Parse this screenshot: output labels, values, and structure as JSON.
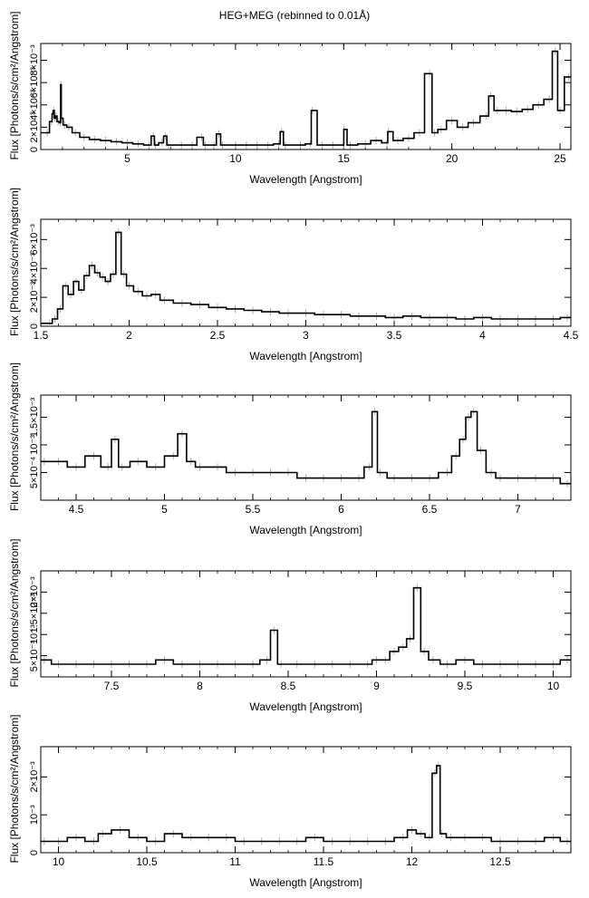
{
  "figure": {
    "title": "HEG+MEG (rebinned to 0.01Å)"
  },
  "colors": {
    "histogram": "#000000",
    "errorbar": "#b0b0b0"
  },
  "chart_data": [
    {
      "type": "line",
      "xlabel": "Wavelength [Angstrom]",
      "ylabel": "Flux [Photons/s/cm²/Angstrom]",
      "xlim": [
        1,
        25.5
      ],
      "ylim": [
        0,
        0.0095
      ],
      "xticks": [
        5,
        10,
        15,
        20,
        25
      ],
      "yticks": [
        0,
        0.002,
        0.004,
        0.006,
        0.008
      ],
      "ytick_labels": [
        "0",
        "2×10⁻³",
        "4×10⁻³",
        "6×10⁻³",
        "8×10⁻³"
      ],
      "series": [
        {
          "x": [
            1.3,
            1.5,
            1.55,
            1.6,
            1.65,
            1.7,
            1.8,
            1.9,
            1.93,
            1.96,
            2.1,
            2.3,
            2.6,
            3,
            3.5,
            4,
            4.5,
            5,
            5.5,
            6,
            6.2,
            6.3,
            6.6,
            6.75,
            6.9,
            7.5,
            8,
            8.43,
            8.6,
            9,
            9.23,
            9.4,
            10,
            10.5,
            11,
            11.5,
            12,
            12.13,
            12.3,
            13,
            13.45,
            13.55,
            14,
            14.5,
            15,
            15.01,
            15.3,
            16,
            16.5,
            17,
            17.07,
            17.5,
            18,
            18.5,
            18.97,
            19.2,
            19.5,
            20,
            20.5,
            21,
            21.6,
            21.8,
            22.1,
            22.5,
            23,
            23.5,
            24,
            24.5,
            24.78,
            25,
            25.4
          ],
          "y": [
            0.0015,
            0.0025,
            0.0032,
            0.0035,
            0.0028,
            0.003,
            0.0025,
            0.0024,
            0.0058,
            0.0028,
            0.0022,
            0.002,
            0.0015,
            0.0011,
            0.0009,
            0.0008,
            0.0007,
            0.0006,
            0.0005,
            0.0004,
            0.0012,
            0.0004,
            0.0006,
            0.0012,
            0.0004,
            0.0004,
            0.0004,
            0.0011,
            0.0004,
            0.0004,
            0.0014,
            0.0004,
            0.0004,
            0.0004,
            0.0004,
            0.0004,
            0.0005,
            0.0016,
            0.0004,
            0.0004,
            0.0005,
            0.0035,
            0.0004,
            0.0004,
            0.0004,
            0.0018,
            0.0004,
            0.0005,
            0.0008,
            0.0006,
            0.0016,
            0.0008,
            0.001,
            0.0015,
            0.0068,
            0.0015,
            0.0018,
            0.0026,
            0.002,
            0.0024,
            0.003,
            0.0048,
            0.0035,
            0.0035,
            0.0034,
            0.0036,
            0.004,
            0.0045,
            0.0088,
            0.0035,
            0.0065
          ]
        }
      ]
    },
    {
      "type": "line",
      "xlabel": "Wavelength [Angstrom]",
      "ylabel": "Flux [Photons/s/cm²/Angstrom]",
      "xlim": [
        1.5,
        4.5
      ],
      "ylim": [
        0,
        0.0074
      ],
      "xticks": [
        1.5,
        2,
        2.5,
        3,
        3.5,
        4,
        4.5
      ],
      "xtick_labels": [
        "1.5",
        "2",
        "2.5",
        "3",
        "3.5",
        "4",
        "4.5"
      ],
      "yticks": [
        0,
        0.002,
        0.004,
        0.006
      ],
      "ytick_labels": [
        "0",
        "2×10⁻³",
        "4×10⁻³",
        "6×10⁻³"
      ],
      "series": [
        {
          "x": [
            1.55,
            1.58,
            1.61,
            1.64,
            1.67,
            1.7,
            1.73,
            1.76,
            1.79,
            1.82,
            1.85,
            1.88,
            1.91,
            1.94,
            1.97,
            2.0,
            2.05,
            2.1,
            2.15,
            2.2,
            2.3,
            2.4,
            2.5,
            2.6,
            2.7,
            2.8,
            2.9,
            3.0,
            3.1,
            3.2,
            3.3,
            3.4,
            3.5,
            3.6,
            3.7,
            3.8,
            3.9,
            4.0,
            4.1,
            4.2,
            4.3,
            4.4,
            4.48
          ],
          "y": [
            0.0002,
            0.0005,
            0.0012,
            0.0028,
            0.0022,
            0.0031,
            0.0025,
            0.0035,
            0.0042,
            0.0037,
            0.0034,
            0.0031,
            0.0036,
            0.0065,
            0.0036,
            0.0028,
            0.0024,
            0.0021,
            0.0022,
            0.0018,
            0.0016,
            0.0015,
            0.0013,
            0.0012,
            0.0011,
            0.001,
            0.0009,
            0.0009,
            0.0008,
            0.0008,
            0.0007,
            0.0007,
            0.0006,
            0.0007,
            0.0006,
            0.0006,
            0.0005,
            0.0006,
            0.0005,
            0.0005,
            0.0005,
            0.0005,
            0.0006
          ]
        }
      ]
    },
    {
      "type": "line",
      "xlabel": "Wavelength [Angstrom]",
      "ylabel": "Flux [Photons/s/cm²/Angstrom]",
      "xlim": [
        4.3,
        7.3
      ],
      "ylim": [
        0,
        0.0019
      ],
      "xticks": [
        4.5,
        5,
        5.5,
        6,
        6.5,
        7
      ],
      "xtick_labels": [
        "4.5",
        "5",
        "5.5",
        "6",
        "6.5",
        "7"
      ],
      "yticks": [
        0.0005,
        0.001,
        0.0015
      ],
      "ytick_labels": [
        "5×10⁻⁴",
        "10⁻³",
        "1.5×10⁻³"
      ],
      "series": [
        {
          "x": [
            4.32,
            4.4,
            4.5,
            4.6,
            4.68,
            4.72,
            4.76,
            4.85,
            4.95,
            5.05,
            5.1,
            5.15,
            5.2,
            5.3,
            5.4,
            5.5,
            5.6,
            5.7,
            5.8,
            5.9,
            6.0,
            6.1,
            6.16,
            6.19,
            6.22,
            6.3,
            6.4,
            6.5,
            6.6,
            6.65,
            6.69,
            6.72,
            6.75,
            6.79,
            6.85,
            6.9,
            7.0,
            7.1,
            7.2,
            7.28
          ],
          "y": [
            0.0007,
            0.0007,
            0.0006,
            0.0008,
            0.0006,
            0.0011,
            0.0006,
            0.0007,
            0.0006,
            0.0008,
            0.0012,
            0.0007,
            0.0006,
            0.0006,
            0.0005,
            0.0005,
            0.0005,
            0.0005,
            0.0004,
            0.0004,
            0.0004,
            0.0004,
            0.0006,
            0.0016,
            0.0005,
            0.0004,
            0.0004,
            0.0004,
            0.0005,
            0.0008,
            0.0011,
            0.0015,
            0.0016,
            0.0009,
            0.0005,
            0.0004,
            0.0004,
            0.0004,
            0.0004,
            0.0003
          ]
        }
      ]
    },
    {
      "type": "line",
      "xlabel": "Wavelength [Angstrom]",
      "ylabel": "Flux [Photons/s/cm²/Angstrom]",
      "xlim": [
        7.1,
        10.1
      ],
      "ylim": [
        0,
        0.0025
      ],
      "xticks": [
        7.5,
        8,
        8.5,
        9,
        9.5,
        10
      ],
      "xtick_labels": [
        "7.5",
        "8",
        "8.5",
        "9",
        "9.5",
        "10"
      ],
      "yticks": [
        0.0005,
        0.001,
        0.0015,
        0.002
      ],
      "ytick_labels": [
        "5×10⁻⁴",
        "10⁻³",
        "1.5×10⁻³",
        "2×10⁻³"
      ],
      "series": [
        {
          "x": [
            7.12,
            7.2,
            7.3,
            7.4,
            7.5,
            7.6,
            7.7,
            7.8,
            7.9,
            8.0,
            8.1,
            8.2,
            8.3,
            8.38,
            8.42,
            8.46,
            8.55,
            8.65,
            8.75,
            8.85,
            8.95,
            9.0,
            9.05,
            9.1,
            9.15,
            9.19,
            9.23,
            9.27,
            9.32,
            9.4,
            9.5,
            9.6,
            9.7,
            9.8,
            9.9,
            10.0,
            10.08
          ],
          "y": [
            0.0004,
            0.0003,
            0.0003,
            0.0003,
            0.0003,
            0.0003,
            0.0003,
            0.0004,
            0.0003,
            0.0003,
            0.0003,
            0.0003,
            0.0003,
            0.0004,
            0.0011,
            0.0003,
            0.0003,
            0.0003,
            0.0003,
            0.0003,
            0.0003,
            0.0004,
            0.0004,
            0.0006,
            0.0007,
            0.0009,
            0.0021,
            0.0006,
            0.0004,
            0.0003,
            0.0004,
            0.0003,
            0.0003,
            0.0003,
            0.0003,
            0.0003,
            0.0004
          ]
        }
      ]
    },
    {
      "type": "line",
      "xlabel": "Wavelength [Angstrom]",
      "ylabel": "Flux [Photons/s/cm²/Angstrom]",
      "xlim": [
        9.9,
        12.9
      ],
      "ylim": [
        0,
        0.0028
      ],
      "xticks": [
        10,
        10.5,
        11,
        11.5,
        12,
        12.5
      ],
      "xtick_labels": [
        "10",
        "10.5",
        "11",
        "11.5",
        "12",
        "12.5"
      ],
      "yticks": [
        0,
        0.001,
        0.002
      ],
      "ytick_labels": [
        "0",
        "10⁻³",
        "2×10⁻³"
      ],
      "series": [
        {
          "x": [
            9.92,
            10.0,
            10.1,
            10.2,
            10.25,
            10.35,
            10.45,
            10.55,
            10.65,
            10.75,
            10.85,
            10.95,
            11.05,
            11.15,
            11.25,
            11.35,
            11.45,
            11.55,
            11.65,
            11.75,
            11.85,
            11.95,
            12.0,
            12.05,
            12.1,
            12.13,
            12.15,
            12.17,
            12.22,
            12.3,
            12.4,
            12.5,
            12.6,
            12.7,
            12.8,
            12.88
          ],
          "y": [
            0.0003,
            0.0003,
            0.0004,
            0.0003,
            0.0005,
            0.0006,
            0.0004,
            0.0003,
            0.0005,
            0.0004,
            0.0004,
            0.0004,
            0.0003,
            0.0003,
            0.0003,
            0.0003,
            0.0004,
            0.0003,
            0.0003,
            0.0003,
            0.0003,
            0.0004,
            0.0006,
            0.0005,
            0.0004,
            0.0021,
            0.0023,
            0.0005,
            0.0004,
            0.0004,
            0.0004,
            0.0003,
            0.0003,
            0.0003,
            0.0004,
            0.0003
          ]
        }
      ]
    }
  ]
}
